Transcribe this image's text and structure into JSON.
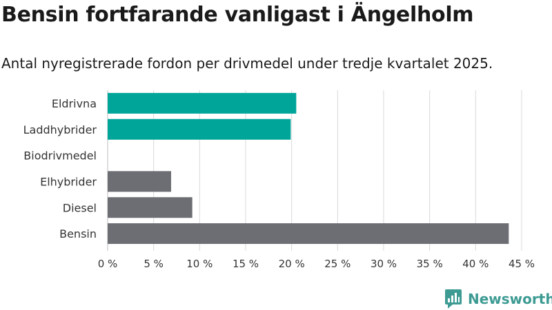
{
  "title": "Bensin fortfarande vanligast i Ängelholm",
  "subtitle": "Antal nyregistrerade fordon per drivmedel under tredje kvartalet 2025.",
  "brand": "Newsworthy",
  "colors": {
    "electric": "#00a59a",
    "other": "#6d6e73",
    "grid": "#d9d9d9",
    "text": "#333333",
    "brand": "#3d9b93"
  },
  "chart_data": {
    "type": "bar",
    "orientation": "horizontal",
    "categories": [
      "Eldrivna",
      "Laddhybrider",
      "Biodrivmedel",
      "Elhybrider",
      "Diesel",
      "Bensin"
    ],
    "values": [
      20.5,
      19.9,
      0,
      6.9,
      9.2,
      43.6
    ],
    "bar_colors": [
      "#00a59a",
      "#00a59a",
      "#00a59a",
      "#6d6e73",
      "#6d6e73",
      "#6d6e73"
    ],
    "xlim": [
      0,
      45
    ],
    "xticks": [
      0,
      5,
      10,
      15,
      20,
      25,
      30,
      35,
      40,
      45
    ],
    "xtick_labels": [
      "0 %",
      "5 %",
      "10 %",
      "15 %",
      "20 %",
      "25 %",
      "30 %",
      "35 %",
      "40 %",
      "45 %"
    ],
    "title": "Bensin fortfarande vanligast i Ängelholm",
    "xlabel": "",
    "ylabel": "",
    "grid": "vertical"
  }
}
